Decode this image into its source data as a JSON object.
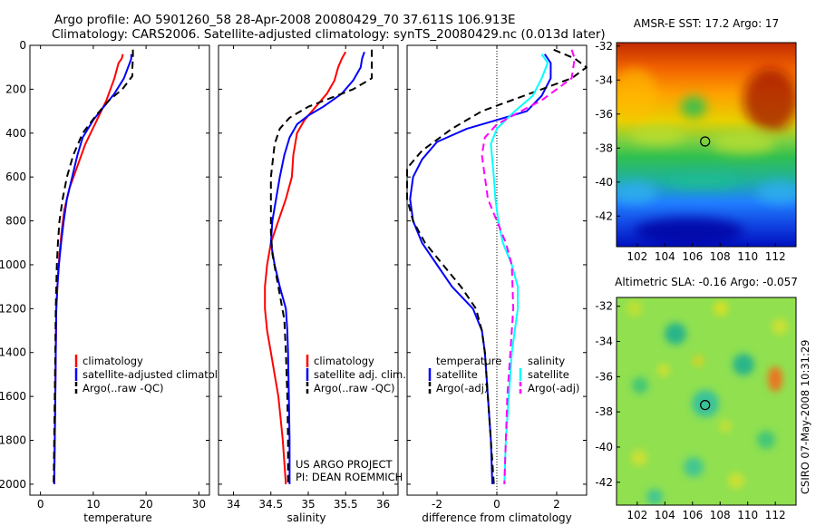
{
  "header": {
    "title_line1": "Argo profile: AO 5901260_58 28-Apr-2008 20080429_70 37.611S 106.913E",
    "title_line2": "Climatology: CARS2006. Satellite-adjusted climatology: synTS_20080429.nc (0.013d later)"
  },
  "colors": {
    "climatology": "#ff0000",
    "satellite": "#0000ff",
    "argo": "#000000",
    "satellite_salinity": "#00ffff",
    "argo_adj_salinity": "#ff00ff"
  },
  "credit": {
    "project": "US ARGO PROJECT",
    "pi": "PI: DEAN ROEMMICH",
    "footer": "CSIRO 07-May-2008 10:31:29"
  },
  "chart_data": [
    {
      "type": "line",
      "id": "temperature",
      "xlabel": "temperature",
      "ylabel": "",
      "xlim": [
        -2,
        32
      ],
      "ylim": [
        2050,
        0
      ],
      "xticks": [
        0,
        10,
        20,
        30
      ],
      "yticks": [
        0,
        200,
        400,
        600,
        800,
        1000,
        1200,
        1400,
        1600,
        1800,
        2000
      ],
      "legend": [
        "climatology",
        "satellite-adjusted climatology",
        "Argo(..raw -QC)"
      ],
      "series": [
        {
          "name": "climatology",
          "style": "solid",
          "color": "#ff0000",
          "points": [
            [
              15.6,
              40
            ],
            [
              15.4,
              60
            ],
            [
              14.8,
              80
            ],
            [
              14.0,
              150
            ],
            [
              12.5,
              250
            ],
            [
              10.5,
              350
            ],
            [
              8.5,
              450
            ],
            [
              7.0,
              550
            ],
            [
              5.5,
              650
            ],
            [
              4.5,
              750
            ],
            [
              4.0,
              850
            ],
            [
              3.6,
              950
            ],
            [
              3.3,
              1050
            ],
            [
              3.0,
              1200
            ],
            [
              2.9,
              1400
            ],
            [
              2.8,
              1600
            ],
            [
              2.7,
              1800
            ],
            [
              2.6,
              2000
            ]
          ]
        },
        {
          "name": "satellite-adjusted climatology",
          "style": "solid",
          "color": "#0000ff",
          "points": [
            [
              17.2,
              40
            ],
            [
              17.2,
              60
            ],
            [
              16.9,
              80
            ],
            [
              15.8,
              150
            ],
            [
              14.0,
              220
            ],
            [
              12.0,
              280
            ],
            [
              10.0,
              340
            ],
            [
              8.0,
              420
            ],
            [
              7.0,
              500
            ],
            [
              6.0,
              600
            ],
            [
              5.0,
              700
            ],
            [
              4.4,
              800
            ],
            [
              3.9,
              900
            ],
            [
              3.5,
              1000
            ],
            [
              3.2,
              1100
            ],
            [
              3.0,
              1200
            ],
            [
              2.9,
              1400
            ],
            [
              2.8,
              1600
            ],
            [
              2.7,
              1800
            ],
            [
              2.6,
              2000
            ]
          ]
        },
        {
          "name": "Argo(..raw -QC)",
          "style": "dashed",
          "color": "#000000",
          "points": [
            [
              17.5,
              20
            ],
            [
              17.5,
              60
            ],
            [
              17.4,
              100
            ],
            [
              17.4,
              140
            ],
            [
              15.5,
              200
            ],
            [
              13.0,
              250
            ],
            [
              10.5,
              320
            ],
            [
              8.0,
              400
            ],
            [
              6.2,
              500
            ],
            [
              5.0,
              600
            ],
            [
              4.2,
              700
            ],
            [
              3.6,
              800
            ],
            [
              3.3,
              900
            ],
            [
              3.1,
              1000
            ],
            [
              3.0,
              1100
            ],
            [
              2.9,
              1200
            ],
            [
              2.8,
              1400
            ],
            [
              2.7,
              1600
            ],
            [
              2.6,
              1800
            ],
            [
              2.5,
              2000
            ]
          ]
        }
      ]
    },
    {
      "type": "line",
      "id": "salinity",
      "xlabel": "salinity",
      "ylabel": "",
      "xlim": [
        33.8,
        36.2
      ],
      "ylim": [
        2050,
        0
      ],
      "xticks": [
        34,
        34.5,
        35,
        35.5,
        36
      ],
      "legend": [
        "climatology",
        "satellite adj. clim.",
        "Argo(..raw -QC)"
      ],
      "series": [
        {
          "name": "climatology",
          "style": "solid",
          "color": "#ff0000",
          "points": [
            [
              35.5,
              30
            ],
            [
              35.45,
              60
            ],
            [
              35.4,
              100
            ],
            [
              35.35,
              160
            ],
            [
              35.25,
              220
            ],
            [
              35.1,
              280
            ],
            [
              34.95,
              340
            ],
            [
              34.85,
              400
            ],
            [
              34.8,
              500
            ],
            [
              34.78,
              600
            ],
            [
              34.7,
              700
            ],
            [
              34.6,
              800
            ],
            [
              34.5,
              900
            ],
            [
              34.45,
              1000
            ],
            [
              34.42,
              1100
            ],
            [
              34.42,
              1200
            ],
            [
              34.45,
              1300
            ],
            [
              34.5,
              1400
            ],
            [
              34.55,
              1500
            ],
            [
              34.6,
              1600
            ],
            [
              34.63,
              1700
            ],
            [
              34.66,
              1800
            ],
            [
              34.68,
              1900
            ],
            [
              34.7,
              2000
            ]
          ]
        },
        {
          "name": "satellite adj. clim.",
          "style": "solid",
          "color": "#0000ff",
          "points": [
            [
              35.75,
              30
            ],
            [
              35.72,
              60
            ],
            [
              35.7,
              100
            ],
            [
              35.6,
              160
            ],
            [
              35.45,
              220
            ],
            [
              35.2,
              280
            ],
            [
              35.0,
              320
            ],
            [
              34.85,
              360
            ],
            [
              34.75,
              420
            ],
            [
              34.68,
              500
            ],
            [
              34.62,
              600
            ],
            [
              34.57,
              700
            ],
            [
              34.52,
              800
            ],
            [
              34.5,
              900
            ],
            [
              34.55,
              1000
            ],
            [
              34.62,
              1100
            ],
            [
              34.7,
              1200
            ],
            [
              34.72,
              1300
            ],
            [
              34.73,
              1400
            ],
            [
              34.74,
              1600
            ],
            [
              34.75,
              1800
            ],
            [
              34.75,
              2000
            ]
          ]
        },
        {
          "name": "Argo(..raw -QC)",
          "style": "dashed",
          "color": "#000000",
          "points": [
            [
              35.85,
              20
            ],
            [
              35.85,
              80
            ],
            [
              35.85,
              150
            ],
            [
              35.6,
              200
            ],
            [
              35.3,
              240
            ],
            [
              35.0,
              280
            ],
            [
              34.75,
              330
            ],
            [
              34.62,
              380
            ],
            [
              34.55,
              450
            ],
            [
              34.5,
              600
            ],
            [
              34.5,
              750
            ],
            [
              34.5,
              850
            ],
            [
              34.52,
              950
            ],
            [
              34.6,
              1100
            ],
            [
              34.68,
              1250
            ],
            [
              34.7,
              1400
            ],
            [
              34.72,
              1600
            ],
            [
              34.73,
              1800
            ],
            [
              34.73,
              2000
            ]
          ]
        }
      ]
    },
    {
      "type": "line",
      "id": "difference",
      "xlabel": "difference from climatology",
      "ylabel": "",
      "xlim": [
        -3,
        3
      ],
      "ylim": [
        2050,
        0
      ],
      "xticks": [
        -2,
        0,
        2
      ],
      "legend_temperature": {
        "title": "temperature",
        "items": [
          "satellite",
          "Argo(-adj)"
        ]
      },
      "legend_salinity": {
        "title": "salinity",
        "items": [
          "satellite",
          "Argo(-adj)"
        ]
      },
      "series": [
        {
          "name": "temperature satellite",
          "style": "solid",
          "color": "#0000ff",
          "points": [
            [
              1.6,
              40
            ],
            [
              1.8,
              80
            ],
            [
              1.8,
              150
            ],
            [
              1.5,
              230
            ],
            [
              1.0,
              300
            ],
            [
              0.0,
              340
            ],
            [
              -1.0,
              380
            ],
            [
              -2.0,
              440
            ],
            [
              -2.5,
              520
            ],
            [
              -2.8,
              600
            ],
            [
              -2.9,
              700
            ],
            [
              -2.8,
              800
            ],
            [
              -2.5,
              900
            ],
            [
              -2.0,
              1000
            ],
            [
              -1.5,
              1100
            ],
            [
              -0.8,
              1200
            ],
            [
              -0.5,
              1300
            ],
            [
              -0.4,
              1400
            ],
            [
              -0.3,
              1600
            ],
            [
              -0.2,
              1800
            ],
            [
              -0.15,
              2000
            ]
          ]
        },
        {
          "name": "temperature Argo(-adj)",
          "style": "dashed",
          "color": "#000000",
          "points": [
            [
              1.9,
              20
            ],
            [
              2.6,
              60
            ],
            [
              3.0,
              100
            ],
            [
              2.5,
              150
            ],
            [
              1.5,
              200
            ],
            [
              0.5,
              250
            ],
            [
              -0.5,
              300
            ],
            [
              -1.5,
              380
            ],
            [
              -2.5,
              480
            ],
            [
              -3.0,
              560
            ],
            [
              -3.0,
              700
            ],
            [
              -2.8,
              800
            ],
            [
              -2.4,
              900
            ],
            [
              -1.8,
              1000
            ],
            [
              -1.2,
              1100
            ],
            [
              -0.7,
              1200
            ],
            [
              -0.5,
              1300
            ],
            [
              -0.4,
              1400
            ],
            [
              -0.3,
              1600
            ],
            [
              -0.2,
              1800
            ],
            [
              -0.1,
              2000
            ]
          ]
        },
        {
          "name": "salinity satellite",
          "style": "solid",
          "color": "#00ffff",
          "points": [
            [
              1.5,
              40
            ],
            [
              1.7,
              80
            ],
            [
              1.5,
              150
            ],
            [
              1.2,
              230
            ],
            [
              0.6,
              300
            ],
            [
              0.0,
              380
            ],
            [
              -0.2,
              450
            ],
            [
              -0.1,
              600
            ],
            [
              -0.05,
              700
            ],
            [
              0.05,
              800
            ],
            [
              0.2,
              900
            ],
            [
              0.5,
              1000
            ],
            [
              0.7,
              1100
            ],
            [
              0.7,
              1200
            ],
            [
              0.6,
              1300
            ],
            [
              0.5,
              1400
            ],
            [
              0.4,
              1600
            ],
            [
              0.3,
              1800
            ],
            [
              0.25,
              2000
            ]
          ]
        },
        {
          "name": "salinity Argo(-adj)",
          "style": "dashed",
          "color": "#ff00ff",
          "points": [
            [
              2.5,
              20
            ],
            [
              2.6,
              60
            ],
            [
              2.5,
              150
            ],
            [
              1.5,
              250
            ],
            [
              0.8,
              300
            ],
            [
              0.0,
              360
            ],
            [
              -0.4,
              420
            ],
            [
              -0.5,
              500
            ],
            [
              -0.4,
              600
            ],
            [
              -0.3,
              700
            ],
            [
              0.0,
              800
            ],
            [
              0.3,
              900
            ],
            [
              0.5,
              1000
            ],
            [
              0.55,
              1200
            ],
            [
              0.45,
              1400
            ],
            [
              0.35,
              1600
            ],
            [
              0.3,
              1800
            ],
            [
              0.25,
              2000
            ]
          ]
        }
      ]
    },
    {
      "type": "heatmap",
      "id": "sst_map",
      "title": "AMSR-E SST: 17.2 Argo: 17",
      "xlim": [
        100.5,
        113.5
      ],
      "ylim": [
        -43.8,
        -31.8
      ],
      "xticks": [
        102,
        104,
        106,
        108,
        110,
        112
      ],
      "yticks": [
        -32,
        -34,
        -36,
        -38,
        -40,
        -42
      ],
      "marker": {
        "lon": 106.913,
        "lat": -37.611
      }
    },
    {
      "type": "heatmap",
      "id": "sla_map",
      "title": "Altimetric SLA: -0.16 Argo: -0.057",
      "xlim": [
        100.5,
        113.5
      ],
      "ylim": [
        -43.3,
        -31.5
      ],
      "xticks": [
        102,
        104,
        106,
        108,
        110,
        112
      ],
      "yticks": [
        -32,
        -34,
        -36,
        -38,
        -40,
        -42
      ],
      "marker": {
        "lon": 106.913,
        "lat": -37.611
      }
    }
  ]
}
